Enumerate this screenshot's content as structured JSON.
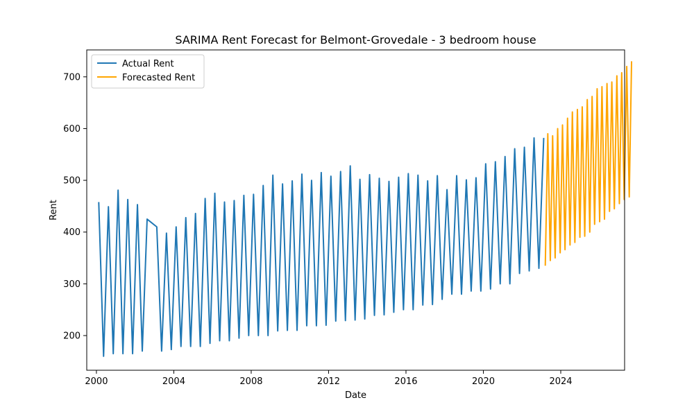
{
  "chart_data": {
    "type": "line",
    "title": "SARIMA Rent Forecast for Belmont-Grovedale - 3 bedroom house",
    "xlabel": "Date",
    "ylabel": "Rent",
    "xlim": [
      1999.5,
      2027.3
    ],
    "ylim": [
      133,
      752
    ],
    "x_ticks": [
      2000,
      2004,
      2008,
      2012,
      2016,
      2020,
      2024
    ],
    "x_tick_labels": [
      "2000",
      "2004",
      "2008",
      "2012",
      "2016",
      "2020",
      "2024"
    ],
    "y_ticks": [
      200,
      300,
      400,
      500,
      600,
      700
    ],
    "y_tick_labels": [
      "200",
      "300",
      "400",
      "500",
      "600",
      "700"
    ],
    "grid": false,
    "legend_position": "top-left",
    "series": [
      {
        "name": "Actual Rent",
        "color": "#1f77b4",
        "points": [
          [
            2000.12,
            458
          ],
          [
            2000.37,
            160
          ],
          [
            2000.62,
            449
          ],
          [
            2000.87,
            165
          ],
          [
            2001.12,
            481
          ],
          [
            2001.37,
            165
          ],
          [
            2001.62,
            463
          ],
          [
            2001.87,
            165
          ],
          [
            2002.12,
            453
          ],
          [
            2002.37,
            170
          ],
          [
            2002.62,
            425
          ],
          [
            2003.12,
            410
          ],
          [
            2003.37,
            170
          ],
          [
            2003.62,
            398
          ],
          [
            2003.87,
            173
          ],
          [
            2004.12,
            410
          ],
          [
            2004.37,
            179
          ],
          [
            2004.62,
            428
          ],
          [
            2004.87,
            179
          ],
          [
            2005.12,
            436
          ],
          [
            2005.37,
            179
          ],
          [
            2005.62,
            465
          ],
          [
            2005.87,
            185
          ],
          [
            2006.12,
            475
          ],
          [
            2006.37,
            190
          ],
          [
            2006.62,
            458
          ],
          [
            2006.87,
            190
          ],
          [
            2007.12,
            461
          ],
          [
            2007.37,
            195
          ],
          [
            2007.62,
            471
          ],
          [
            2007.87,
            200
          ],
          [
            2008.12,
            473
          ],
          [
            2008.37,
            200
          ],
          [
            2008.62,
            490
          ],
          [
            2008.87,
            200
          ],
          [
            2009.12,
            510
          ],
          [
            2009.37,
            209
          ],
          [
            2009.62,
            493
          ],
          [
            2009.87,
            210
          ],
          [
            2010.12,
            499
          ],
          [
            2010.37,
            210
          ],
          [
            2010.62,
            512
          ],
          [
            2010.87,
            219
          ],
          [
            2011.12,
            500
          ],
          [
            2011.37,
            219
          ],
          [
            2011.62,
            515
          ],
          [
            2011.87,
            220
          ],
          [
            2012.12,
            508
          ],
          [
            2012.37,
            228
          ],
          [
            2012.62,
            517
          ],
          [
            2012.87,
            229
          ],
          [
            2013.12,
            528
          ],
          [
            2013.37,
            230
          ],
          [
            2013.62,
            502
          ],
          [
            2013.87,
            232
          ],
          [
            2014.12,
            511
          ],
          [
            2014.37,
            239
          ],
          [
            2014.62,
            504
          ],
          [
            2014.87,
            240
          ],
          [
            2015.12,
            498
          ],
          [
            2015.37,
            245
          ],
          [
            2015.62,
            506
          ],
          [
            2015.87,
            250
          ],
          [
            2016.12,
            513
          ],
          [
            2016.37,
            250
          ],
          [
            2016.62,
            510
          ],
          [
            2016.87,
            259
          ],
          [
            2017.12,
            499
          ],
          [
            2017.37,
            260
          ],
          [
            2017.62,
            509
          ],
          [
            2017.87,
            270
          ],
          [
            2018.12,
            482
          ],
          [
            2018.37,
            280
          ],
          [
            2018.62,
            509
          ],
          [
            2018.87,
            280
          ],
          [
            2019.12,
            501
          ],
          [
            2019.37,
            286
          ],
          [
            2019.62,
            505
          ],
          [
            2019.87,
            286
          ],
          [
            2020.12,
            532
          ],
          [
            2020.37,
            290
          ],
          [
            2020.62,
            536
          ],
          [
            2020.87,
            300
          ],
          [
            2021.12,
            546
          ],
          [
            2021.37,
            300
          ],
          [
            2021.62,
            561
          ],
          [
            2021.87,
            320
          ],
          [
            2022.12,
            564
          ],
          [
            2022.37,
            325
          ],
          [
            2022.62,
            582
          ],
          [
            2022.87,
            330
          ],
          [
            2023.12,
            582
          ]
        ]
      },
      {
        "name": "Forecasted Rent",
        "color": "#ffa500",
        "points": [
          [
            2023.2,
            335
          ],
          [
            2023.33,
            590
          ],
          [
            2023.46,
            345
          ],
          [
            2023.58,
            586
          ],
          [
            2023.71,
            350
          ],
          [
            2023.84,
            600
          ],
          [
            2023.97,
            360
          ],
          [
            2024.09,
            607
          ],
          [
            2024.22,
            366
          ],
          [
            2024.35,
            620
          ],
          [
            2024.48,
            375
          ],
          [
            2024.6,
            632
          ],
          [
            2024.73,
            380
          ],
          [
            2024.86,
            637
          ],
          [
            2024.99,
            390
          ],
          [
            2025.11,
            642
          ],
          [
            2025.24,
            392
          ],
          [
            2025.37,
            656
          ],
          [
            2025.5,
            400
          ],
          [
            2025.62,
            662
          ],
          [
            2025.75,
            415
          ],
          [
            2025.88,
            677
          ],
          [
            2026.01,
            420
          ],
          [
            2026.13,
            681
          ],
          [
            2026.26,
            425
          ],
          [
            2026.39,
            687
          ],
          [
            2026.52,
            440
          ],
          [
            2026.64,
            690
          ],
          [
            2026.77,
            445
          ],
          [
            2026.9,
            702
          ],
          [
            2027.03,
            455
          ],
          [
            2027.15,
            708
          ],
          [
            2027.28,
            463
          ],
          [
            2027.41,
            720
          ],
          [
            2027.54,
            468
          ],
          [
            2027.66,
            730
          ]
        ]
      }
    ]
  }
}
